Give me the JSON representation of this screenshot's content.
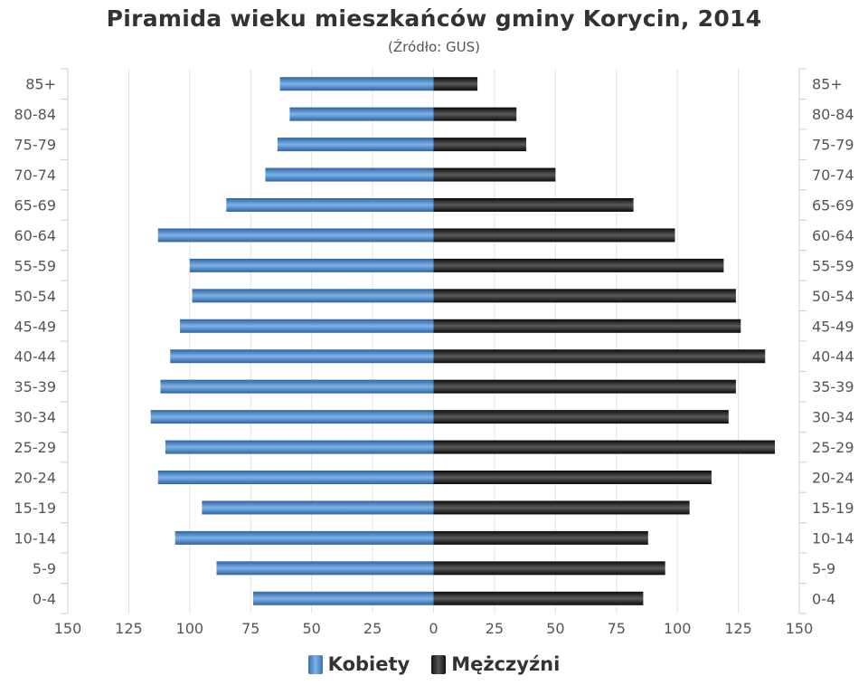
{
  "chart_data": {
    "type": "bar",
    "title": "Piramida wieku mieszkańców gminy Korycin, 2014",
    "subtitle": "(Źródło: GUS)",
    "categories": [
      "0-4",
      "5-9",
      "10-14",
      "15-19",
      "20-24",
      "25-29",
      "30-34",
      "35-39",
      "40-44",
      "45-49",
      "50-54",
      "55-59",
      "60-64",
      "65-69",
      "70-74",
      "75-79",
      "80-84",
      "85+"
    ],
    "series": [
      {
        "name": "Kobiety",
        "color": "#4a86c8",
        "side": "left",
        "values": [
          74,
          89,
          106,
          95,
          113,
          110,
          116,
          112,
          108,
          104,
          99,
          100,
          113,
          85,
          69,
          64,
          59,
          63
        ]
      },
      {
        "name": "Mężczyźni",
        "color": "#1a1a1a",
        "side": "right",
        "values": [
          86,
          95,
          88,
          105,
          114,
          140,
          121,
          124,
          136,
          126,
          124,
          119,
          99,
          82,
          50,
          38,
          34,
          18
        ]
      }
    ],
    "xlim": [
      -150,
      150
    ],
    "xticks": [
      "150",
      "125",
      "100",
      "75",
      "50",
      "25",
      "0",
      "25",
      "50",
      "75",
      "100",
      "125",
      "150"
    ],
    "grid": true,
    "legend_position": "bottom-center"
  }
}
